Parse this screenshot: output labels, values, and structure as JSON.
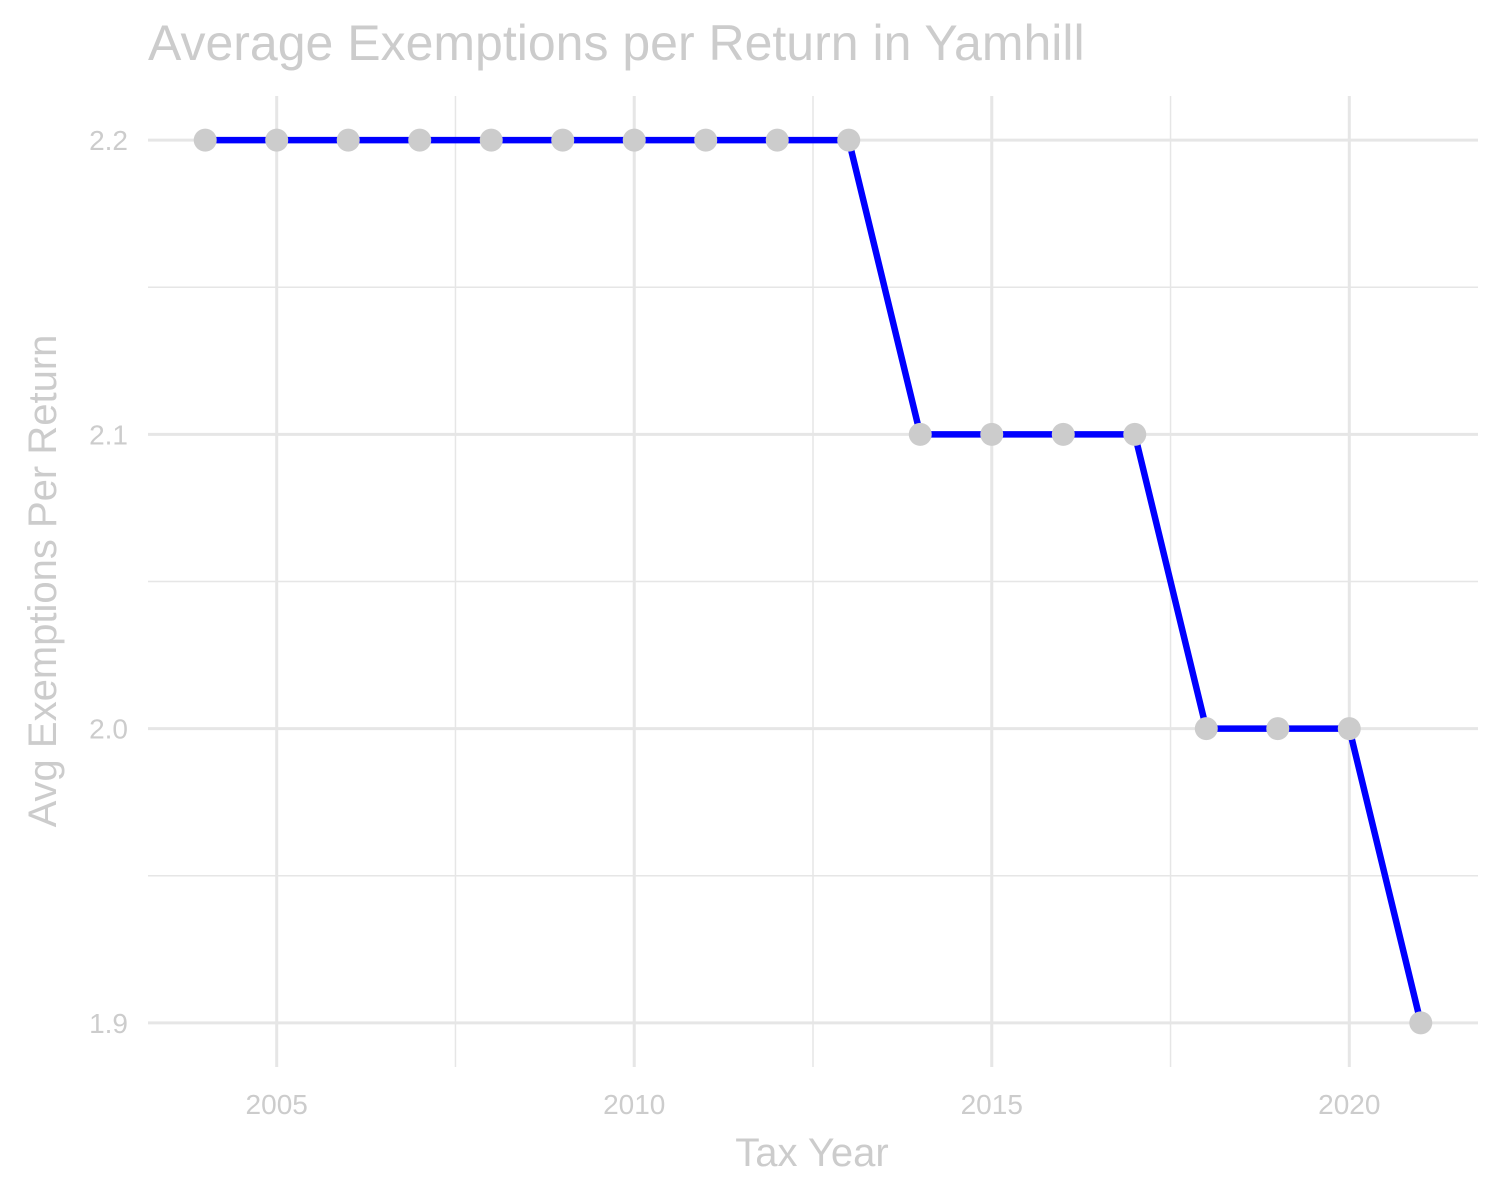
{
  "chart_data": {
    "type": "line",
    "title": "Average Exemptions per Return in Yamhill",
    "xlabel": "Tax Year",
    "ylabel": "Avg Exemptions Per Return",
    "x": [
      2004,
      2005,
      2006,
      2007,
      2008,
      2009,
      2010,
      2011,
      2012,
      2013,
      2014,
      2015,
      2016,
      2017,
      2018,
      2019,
      2020,
      2021
    ],
    "series": [
      {
        "values": [
          2.2,
          2.2,
          2.2,
          2.2,
          2.2,
          2.2,
          2.2,
          2.2,
          2.2,
          2.2,
          2.1,
          2.1,
          2.1,
          2.1,
          2.0,
          2.0,
          2.0,
          1.9
        ]
      }
    ],
    "xlim": [
      2003.2,
      2021.8
    ],
    "ylim": [
      1.885,
      2.215
    ],
    "x_ticks": [
      2005,
      2010,
      2015,
      2020
    ],
    "x_tick_labels": [
      "2005",
      "2010",
      "2015",
      "2020"
    ],
    "y_ticks": [
      1.9,
      2.0,
      2.1,
      2.2
    ],
    "y_tick_labels": [
      "1.9",
      "2.0",
      "2.1",
      "2.2"
    ],
    "grid": true,
    "legend": "none",
    "colors": {
      "line": "#0000ff",
      "points": "#cccccc",
      "grid": "#e6e6e6",
      "text": "#cccccc"
    }
  }
}
